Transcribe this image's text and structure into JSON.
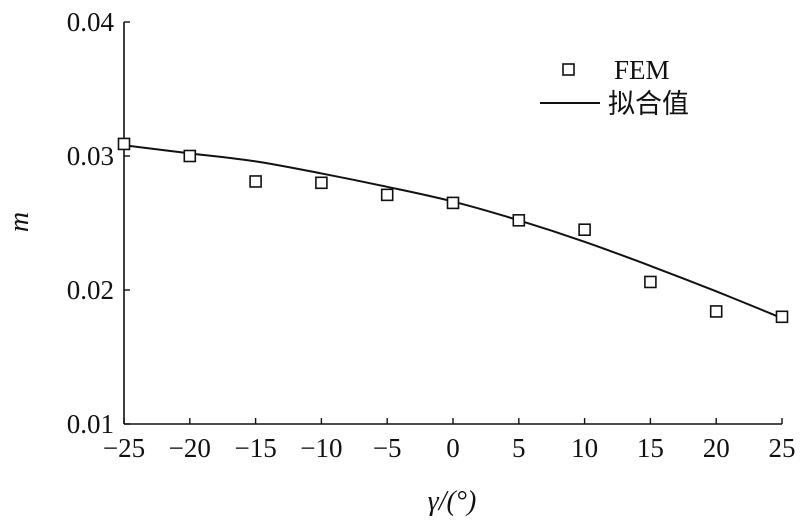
{
  "chart_data": {
    "type": "scatter",
    "xlabel": "γ/(°)",
    "ylabel": "m",
    "xlim": [
      -25,
      25
    ],
    "ylim": [
      0.01,
      0.04
    ],
    "x_ticks": [
      -25,
      -20,
      -15,
      -10,
      -5,
      0,
      5,
      10,
      15,
      20,
      25
    ],
    "x_tick_labels": [
      "−25",
      "−20",
      "−15",
      "−10",
      "−5",
      "0",
      "5",
      "10",
      "15",
      "20",
      "25"
    ],
    "y_ticks": [
      0.01,
      0.02,
      0.03,
      0.04
    ],
    "y_tick_labels": [
      "0.01",
      "0.02",
      "0.03",
      "0.04"
    ],
    "grid": false,
    "legend_position": "top-right",
    "series": [
      {
        "name": "FEM",
        "type": "scatter",
        "marker": "square",
        "x": [
          -25,
          -20,
          -15,
          -10,
          -5,
          0,
          5,
          10,
          15,
          20,
          25
        ],
        "y": [
          0.0309,
          0.03,
          0.0281,
          0.028,
          0.0271,
          0.0265,
          0.0252,
          0.0245,
          0.0206,
          0.0184,
          0.018
        ]
      },
      {
        "name": "拟合值",
        "type": "line",
        "x": [
          -25,
          -20,
          -15,
          -10,
          -5,
          0,
          5,
          10,
          15,
          20,
          25
        ],
        "y": [
          0.0308,
          0.0302,
          0.0296,
          0.0287,
          0.0277,
          0.0266,
          0.0252,
          0.0236,
          0.0218,
          0.0199,
          0.0179
        ]
      }
    ]
  }
}
